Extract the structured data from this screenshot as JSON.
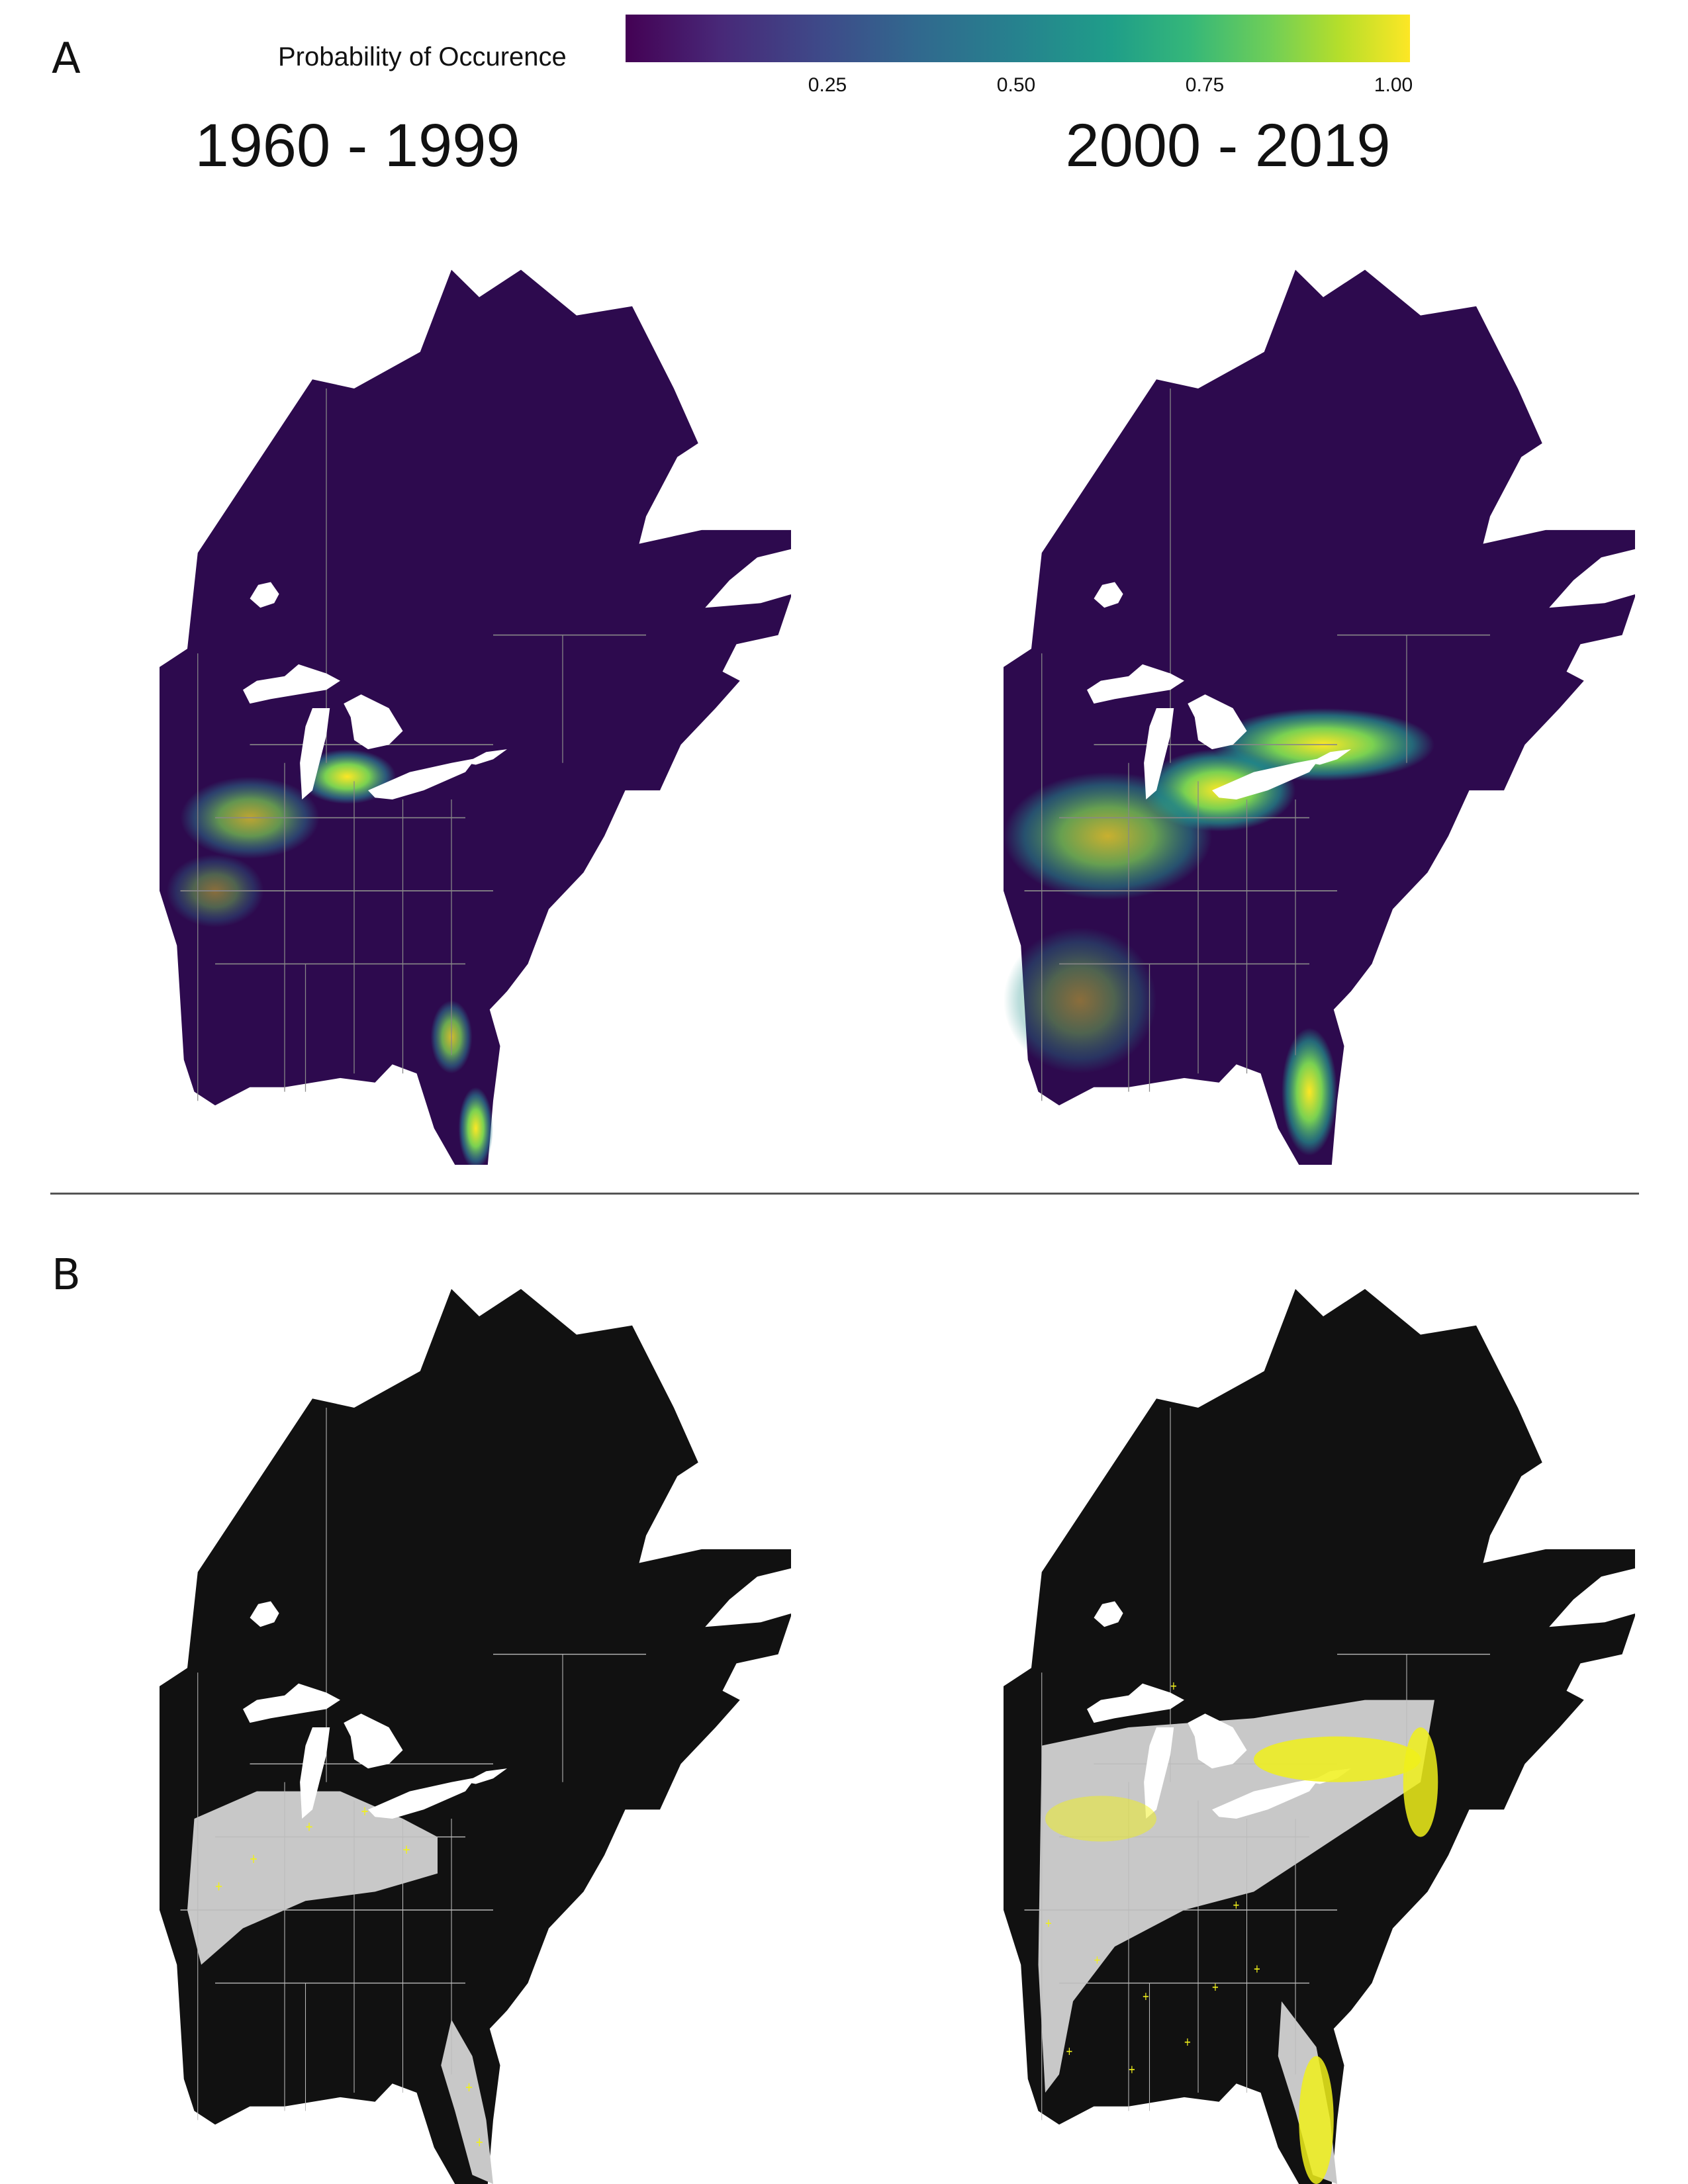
{
  "panels": {
    "a_label": "A",
    "b_label": "B"
  },
  "legend": {
    "title": "Probability of Occurence",
    "ticks": [
      "0.25",
      "0.50",
      "0.75",
      "1.00"
    ],
    "colors": [
      "#440154",
      "#3e4a89",
      "#26828e",
      "#35b779",
      "#fde725"
    ]
  },
  "periods": {
    "left": "1960 - 1999",
    "right": "2000 - 2019"
  },
  "colors": {
    "low_probability": "#2d0a4e",
    "binary_absent": "#111111",
    "binary_present": "#c8c8c8",
    "occurrence_marker": "#f0f01a",
    "state_borders": "#888888",
    "water": "#ffffff"
  }
}
